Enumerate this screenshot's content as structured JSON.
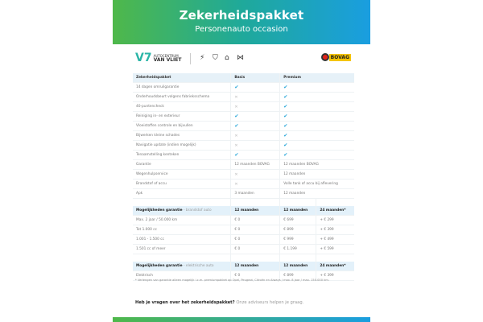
{
  "header": {
    "title": "Zekerheidspakket",
    "subtitle": "Personenauto occasion"
  },
  "logos": {
    "dealer_line1": "AUTOCENTRUM",
    "dealer_line2": "VAN VLIET",
    "brands": [
      "opel-icon",
      "peugeot-icon",
      "citroen-icon",
      "ds-icon"
    ],
    "bovag": "BOVAG"
  },
  "colors": {
    "gradient_start": "#4fb84a",
    "gradient_end": "#1a9ee0",
    "check": "#27a6d8"
  },
  "package_table": {
    "headers": [
      "Zekerheidspakket",
      "Basis",
      "Premium"
    ],
    "rows": [
      {
        "label": "14 dagen omruilgarantie",
        "basis": "check",
        "premium": "check"
      },
      {
        "label": "Onderhoudsbeurt volgens fabrieksschema",
        "basis": "cross",
        "premium": "check"
      },
      {
        "label": "40-puntencheck",
        "basis": "cross",
        "premium": "check"
      },
      {
        "label": "Reiniging in- en exterieur",
        "basis": "check",
        "premium": "check"
      },
      {
        "label": "Vloeistoffen controle en bijvullen",
        "basis": "check",
        "premium": "check"
      },
      {
        "label": "Bijwerken kleine schades",
        "basis": "cross",
        "premium": "check"
      },
      {
        "label": "Navigatie update (indien mogelijk)",
        "basis": "cross",
        "premium": "check"
      },
      {
        "label": "Tenaamstelling kenteken",
        "basis": "check",
        "premium": "check"
      },
      {
        "label": "Garantie",
        "basis": "12 maanden BOVAG",
        "premium": "12 maanden BOVAG"
      },
      {
        "label": "Wegenhulpservice",
        "basis": "cross",
        "premium": "12 maanden"
      },
      {
        "label": "Brandstof of accu",
        "basis": "cross",
        "premium": "Volle tank of accu bij aflevering"
      },
      {
        "label": "Apk",
        "basis": "3 maanden",
        "premium": "12 maanden"
      }
    ]
  },
  "fuel_section": {
    "title": "Mogelijkheden garantie",
    "subtitle": "- brandstof auto",
    "cols": [
      "12 maanden",
      "12 maanden",
      "24 maanden*"
    ],
    "rows": [
      [
        "Max. 2 jaar / 50.000 km",
        "€ 0",
        "€ 699",
        "+ € 299"
      ],
      [
        "Tot 1.000 cc",
        "€ 0",
        "€ 899",
        "+ € 399"
      ],
      [
        "1.001 - 1.500 cc",
        "€ 0",
        "€ 999",
        "+ € 499"
      ],
      [
        "1.501 cc of meer",
        "€ 0",
        "€ 1.199",
        "+ € 599"
      ]
    ]
  },
  "electric_section": {
    "title": "Mogelijkheden garantie",
    "subtitle": "- elektrische auto",
    "cols": [
      "12 maanden",
      "12 maanden",
      "24 maanden*"
    ],
    "rows": [
      [
        "Elektrisch",
        "€ 0",
        "€ 899",
        "+ € 399"
      ]
    ]
  },
  "footnote": "* Verlengen van garantie alleen mogelijk i.c.m. premiumpakket op Opel, Peugeot, Citroën en Aiways / max. 8 jaar / max. 150.000 km.",
  "question": {
    "bold": "Heb je vragen over het zekerheidspakket?",
    "text": " Onze adviseurs helpen je graag."
  }
}
